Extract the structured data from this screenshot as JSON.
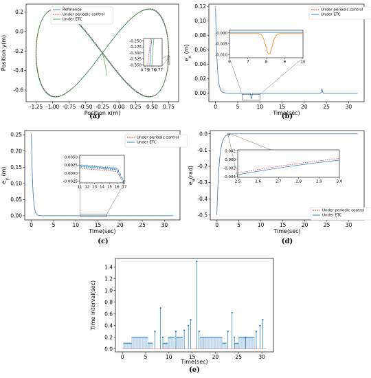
{
  "colors": {
    "ref": "#3a78c9",
    "periodic": "#d62728",
    "etc": "#2ca02c",
    "etc_blue": "#1f77b4",
    "orange": "#ff7f0e"
  },
  "chart_data": [
    {
      "id": "a",
      "type": "line",
      "caption": "(a)",
      "xlabel": "Position x(m)",
      "ylabel": "Position y(m)",
      "xlim": [
        -1.4,
        0.9
      ],
      "ylim": [
        -0.72,
        0.28
      ],
      "xticks": [
        "-1.25",
        "-1.00",
        "-0.75",
        "-0.50",
        "-0.25",
        "0.00",
        "0.25",
        "0.50",
        "0.75"
      ],
      "xtick_values": [
        -1.25,
        -1.0,
        -0.75,
        -0.5,
        -0.25,
        0.0,
        0.25,
        0.5,
        0.75
      ],
      "yticks": [
        "0.2",
        "0.0",
        "-0.2",
        "-0.4",
        "-0.6"
      ],
      "ytick_values": [
        0.2,
        0.0,
        -0.2,
        -0.4,
        -0.6
      ],
      "curve": {
        "type": "figure-eight",
        "cx": -0.25,
        "cy": -0.22,
        "ax": 1.0,
        "by": 0.45
      },
      "series": [
        {
          "name": "Reference"
        },
        {
          "name": "Under periodic control"
        },
        {
          "name": "Under ETC"
        }
      ],
      "legend_position": "top-left",
      "inset": {
        "xlim": [
          0.748,
          0.775
        ],
        "ylim": [
          -0.355,
          -0.24
        ],
        "xticks": [
          "0.75",
          "0.76",
          "0.77"
        ],
        "xtick_values": [
          0.75,
          0.76,
          0.77
        ],
        "yticks": [
          "-0.250",
          "-0.275",
          "-0.300",
          "-0.325",
          "-0.350"
        ],
        "ytick_values": [
          -0.25,
          -0.275,
          -0.3,
          -0.325,
          -0.35
        ]
      }
    },
    {
      "id": "b",
      "type": "line",
      "caption": "(b)",
      "xlabel": "Time(sec)",
      "ylabel": "e_x (m)",
      "xlim": [
        -1.5,
        33.5
      ],
      "ylim": [
        -0.012,
        0.123
      ],
      "xticks": [
        "0",
        "5",
        "10",
        "15",
        "20",
        "25",
        "30"
      ],
      "xtick_values": [
        0,
        5,
        10,
        15,
        20,
        25,
        30
      ],
      "yticks": [
        "0.12",
        "0.10",
        "0.08",
        "0.06",
        "0.04",
        "0.02",
        "0.00"
      ],
      "ytick_values": [
        0.12,
        0.1,
        0.08,
        0.06,
        0.04,
        0.02,
        0.0
      ],
      "series": [
        {
          "name": "Under periodic control"
        },
        {
          "name": "Under ETC"
        }
      ],
      "legend_position": "top-right",
      "inset": {
        "xlim": [
          6,
          10
        ],
        "ylim": [
          -0.0115,
          0.0012
        ],
        "xticks": [
          "6",
          "7",
          "8",
          "9",
          "10"
        ],
        "xtick_values": [
          6,
          7,
          8,
          9,
          10
        ],
        "yticks": [
          "0.000",
          "-0.005",
          "-0.010"
        ],
        "ytick_values": [
          0.0,
          -0.005,
          -0.01
        ]
      }
    },
    {
      "id": "c",
      "type": "line",
      "caption": "(c)",
      "xlabel": "Time(sec)",
      "ylabel": "e_y (m)",
      "xlim": [
        -1.5,
        33.5
      ],
      "ylim": [
        -0.013,
        0.263
      ],
      "xticks": [
        "0",
        "5",
        "10",
        "15",
        "20",
        "25",
        "30"
      ],
      "xtick_values": [
        0,
        5,
        10,
        15,
        20,
        25,
        30
      ],
      "yticks": [
        "0.25",
        "0.20",
        "0.15",
        "0.10",
        "0.05",
        "0.00"
      ],
      "ytick_values": [
        0.25,
        0.2,
        0.15,
        0.1,
        0.05,
        0.0
      ],
      "series": [
        {
          "name": "Under periodic control"
        },
        {
          "name": "Under ETC"
        }
      ],
      "legend_position": "top-right",
      "inset": {
        "xlim": [
          11,
          17
        ],
        "ylim": [
          -0.003,
          0.0055
        ],
        "xticks": [
          "11",
          "12",
          "13",
          "14",
          "15",
          "16",
          "17"
        ],
        "xtick_values": [
          11,
          12,
          13,
          14,
          15,
          16,
          17
        ],
        "yticks": [
          "0.0050",
          "0.0025",
          "0.0000",
          "-0.0025"
        ],
        "ytick_values": [
          0.005,
          0.0025,
          0.0,
          -0.0025
        ]
      }
    },
    {
      "id": "d",
      "type": "line",
      "caption": "(d)",
      "xlabel": "Time(sec)",
      "ylabel": "e_θ(rad)",
      "xlim": [
        -1.5,
        33.5
      ],
      "ylim": [
        -0.53,
        0.02
      ],
      "xticks": [
        "0",
        "5",
        "10",
        "15",
        "20",
        "25",
        "30"
      ],
      "xtick_values": [
        0,
        5,
        10,
        15,
        20,
        25,
        30
      ],
      "yticks": [
        "0.0",
        "-0.1",
        "-0.2",
        "-0.3",
        "-0.4",
        "-0.5"
      ],
      "ytick_values": [
        0.0,
        -0.1,
        -0.2,
        -0.3,
        -0.4,
        -0.5
      ],
      "series": [
        {
          "name": "Under periodic control"
        },
        {
          "name": "Under ETC"
        }
      ],
      "legend_position": "bottom-right",
      "inset": {
        "xlim": [
          2.5,
          3.0
        ],
        "ylim": [
          -0.0042,
          0.0022
        ],
        "xticks": [
          "2.5",
          "2.6",
          "2.7",
          "2.8",
          "2.9",
          "3.0"
        ],
        "xtick_values": [
          2.5,
          2.6,
          2.7,
          2.8,
          2.9,
          3.0
        ],
        "yticks": [
          "0.002",
          "0.000",
          "-0.002",
          "-0.004"
        ],
        "ytick_values": [
          0.002,
          0.0,
          -0.002,
          -0.004
        ]
      }
    },
    {
      "id": "e",
      "type": "bar",
      "caption": "(e)",
      "xlabel": "Time(sec)",
      "ylabel": "Time interval(sec)",
      "xlim": [
        -1.5,
        32.5
      ],
      "ylim": [
        -0.05,
        1.55
      ],
      "xticks": [
        "0",
        "5",
        "10",
        "15",
        "20",
        "25",
        "30"
      ],
      "xtick_values": [
        0,
        5,
        10,
        15,
        20,
        25,
        30
      ],
      "yticks": [
        "1.4",
        "1.2",
        "1.0",
        "0.8",
        "0.6",
        "0.4",
        "0.2",
        "0.0"
      ],
      "ytick_values": [
        1.4,
        1.2,
        1.0,
        0.8,
        0.6,
        0.4,
        0.2,
        0.0
      ],
      "spikes": [
        {
          "t": 7.0,
          "v": 0.3
        },
        {
          "t": 8.2,
          "v": 0.7
        },
        {
          "t": 8.7,
          "v": 0.2
        },
        {
          "t": 11.5,
          "v": 0.3
        },
        {
          "t": 13.3,
          "v": 0.32
        },
        {
          "t": 14.2,
          "v": 0.4
        },
        {
          "t": 14.7,
          "v": 0.5
        },
        {
          "t": 16.0,
          "v": 1.5
        },
        {
          "t": 16.5,
          "v": 0.3
        },
        {
          "t": 22.7,
          "v": 0.3
        },
        {
          "t": 23.6,
          "v": 0.62
        },
        {
          "t": 24.1,
          "v": 0.2
        },
        {
          "t": 26.5,
          "v": 0.2
        },
        {
          "t": 28.8,
          "v": 0.3
        },
        {
          "t": 29.6,
          "v": 0.4
        },
        {
          "t": 30.2,
          "v": 0.5
        }
      ],
      "plateaus": [
        {
          "t0": 0.2,
          "t1": 2.0,
          "v": 0.1
        },
        {
          "t0": 2.0,
          "t1": 5.5,
          "v": 0.2
        },
        {
          "t0": 5.5,
          "t1": 6.5,
          "v": 0.1
        },
        {
          "t0": 8.8,
          "t1": 9.8,
          "v": 0.1
        },
        {
          "t0": 9.8,
          "t1": 11.2,
          "v": 0.2
        },
        {
          "t0": 11.6,
          "t1": 13.0,
          "v": 0.2
        },
        {
          "t0": 16.7,
          "t1": 17.5,
          "v": 0.2
        },
        {
          "t0": 17.5,
          "t1": 21.5,
          "v": 0.2
        },
        {
          "t0": 21.5,
          "t1": 22.4,
          "v": 0.1
        },
        {
          "t0": 24.2,
          "t1": 25.0,
          "v": 0.1
        },
        {
          "t0": 25.0,
          "t1": 26.4,
          "v": 0.2
        },
        {
          "t0": 26.6,
          "t1": 28.4,
          "v": 0.2
        }
      ]
    }
  ]
}
